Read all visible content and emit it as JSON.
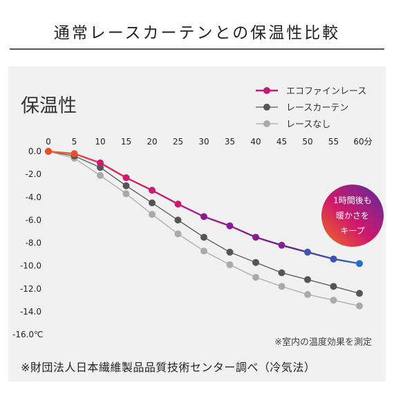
{
  "header": {
    "title": "通常レースカーテンとの保温性比較"
  },
  "footnote": "※財団法人日本繊維製品品質技術センター調べ（冷気法）",
  "chart_data": {
    "type": "line",
    "title": "保温性",
    "note": "※室内の温度効果を測定",
    "badge": [
      "1時間後も",
      "暖かさを",
      "キープ"
    ],
    "x": [
      0,
      5,
      10,
      15,
      20,
      25,
      30,
      35,
      40,
      45,
      50,
      55,
      60
    ],
    "x_tick_labels": [
      "0",
      "5",
      "10",
      "15",
      "20",
      "25",
      "30",
      "35",
      "40",
      "45",
      "50",
      "55",
      "60分"
    ],
    "y_tick_labels": [
      "0.0",
      "-2.0",
      "-4.0",
      "-6.0",
      "-8.0",
      "-10.0",
      "-12.0",
      "-14.0",
      "-16.0℃"
    ],
    "y_ticks": [
      0,
      -2,
      -4,
      -6,
      -8,
      -10,
      -12,
      -14,
      -16
    ],
    "xlim": [
      0,
      60
    ],
    "ylim": [
      -16,
      0
    ],
    "legend_position": "top-right",
    "grid": false,
    "series": [
      {
        "name": "エコファインレース",
        "color": "#c2187a",
        "values": [
          0,
          -0.2,
          -1.0,
          -2.3,
          -3.4,
          -4.6,
          -5.7,
          -6.5,
          -7.5,
          -8.2,
          -8.8,
          -9.4,
          -9.8
        ]
      },
      {
        "name": "レースカーテン",
        "color": "#555555",
        "values": [
          0,
          -0.4,
          -1.4,
          -3.0,
          -4.5,
          -6.0,
          -7.5,
          -8.8,
          -9.7,
          -10.6,
          -11.2,
          -11.8,
          -12.4
        ]
      },
      {
        "name": "レースなし",
        "color": "#aaaaaa",
        "values": [
          0,
          -0.6,
          -2.1,
          -3.7,
          -5.5,
          -7.2,
          -8.7,
          -9.9,
          -11.0,
          -11.8,
          -12.5,
          -13.0,
          -13.5
        ]
      }
    ],
    "colors": {
      "accent_orange": "#f07020",
      "accent_blue": "#2a6fc0",
      "accent_purple": "#6a2090"
    }
  }
}
